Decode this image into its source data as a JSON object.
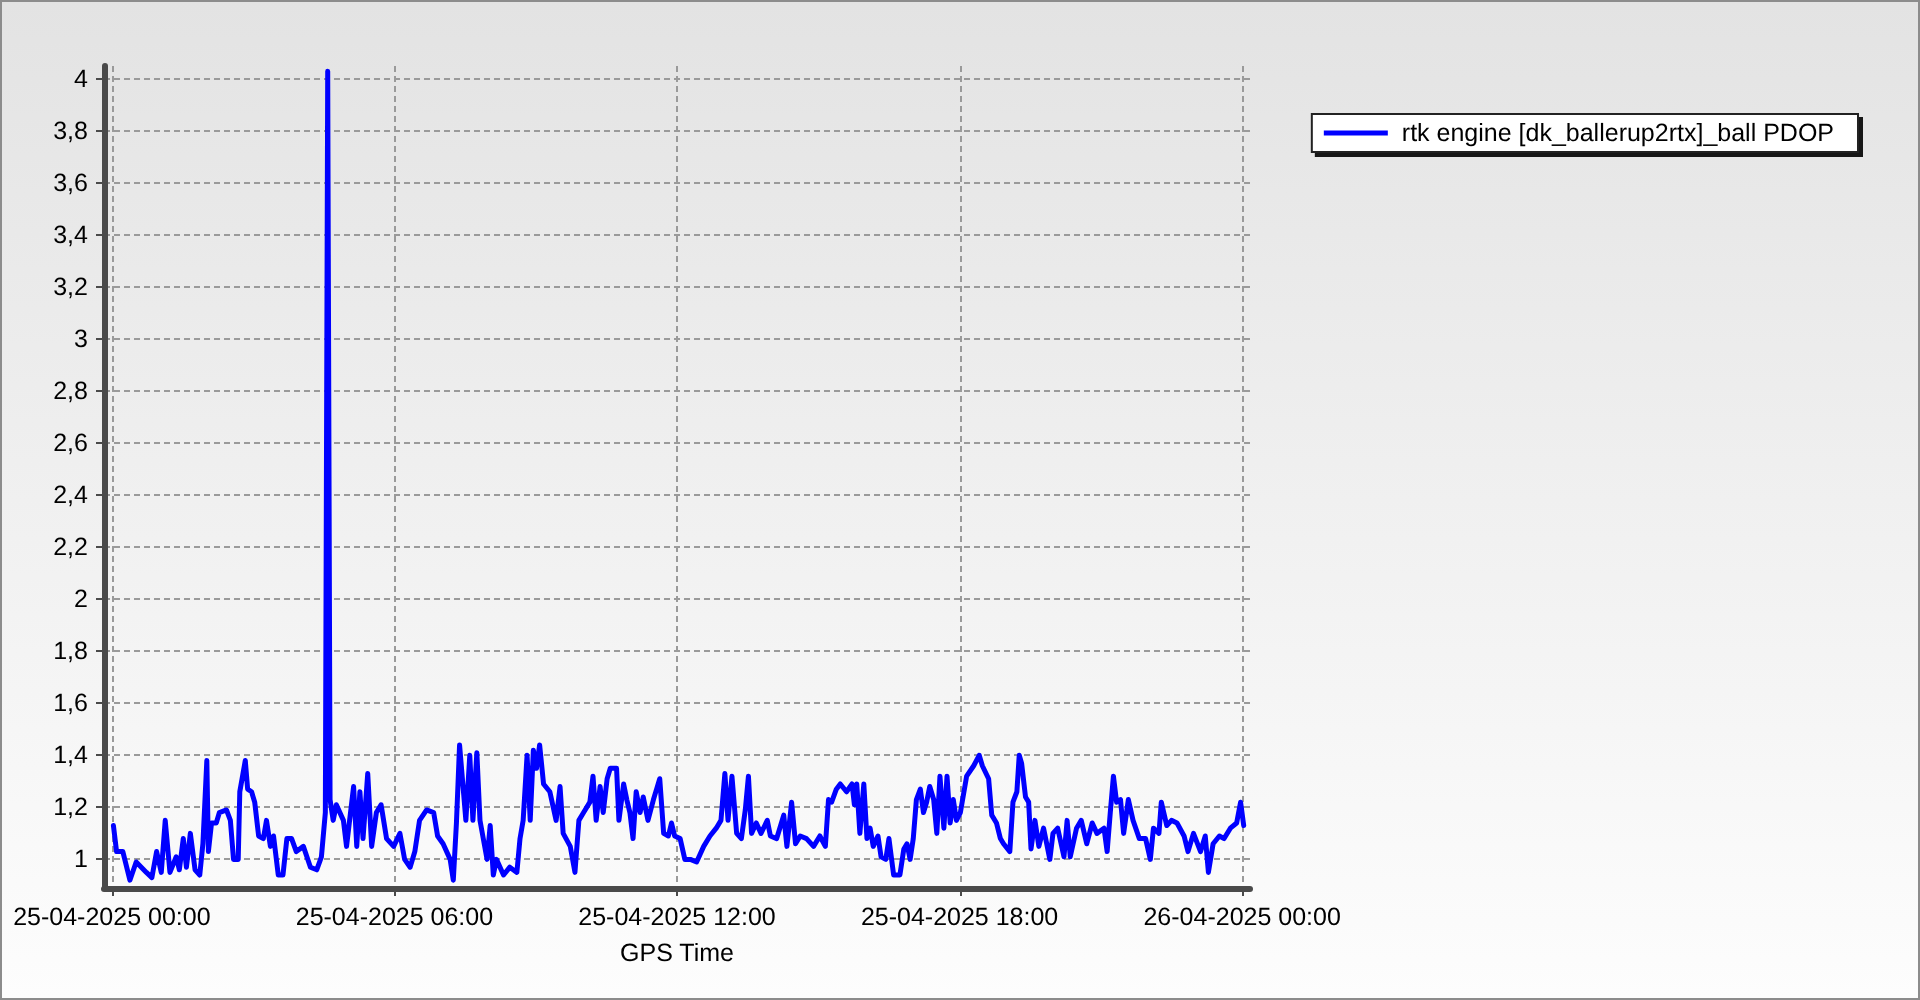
{
  "chart_data": {
    "type": "line",
    "xlabel": "GPS Time",
    "x": [
      "2025-04-25T00:02",
      "2025-04-25T00:06",
      "2025-04-25T00:14",
      "2025-04-25T00:23",
      "2025-04-25T00:31",
      "2025-04-25T00:44",
      "2025-04-25T00:51",
      "2025-04-25T00:57",
      "2025-04-25T01:03",
      "2025-04-25T01:08",
      "2025-04-25T01:14",
      "2025-04-25T01:22",
      "2025-04-25T01:26",
      "2025-04-25T01:31",
      "2025-04-25T01:35",
      "2025-04-25T01:40",
      "2025-04-25T01:46",
      "2025-04-25T01:52",
      "2025-04-25T01:56",
      "2025-04-25T02:01",
      "2025-04-25T02:03",
      "2025-04-25T02:07",
      "2025-04-25T02:13",
      "2025-04-25T02:17",
      "2025-04-25T02:26",
      "2025-04-25T02:31",
      "2025-04-25T02:35",
      "2025-04-25T02:41",
      "2025-04-25T02:43",
      "2025-04-25T02:50",
      "2025-04-25T02:53",
      "2025-04-25T02:58",
      "2025-04-25T03:02",
      "2025-04-25T03:07",
      "2025-04-25T03:13",
      "2025-04-25T03:17",
      "2025-04-25T03:22",
      "2025-04-25T03:26",
      "2025-04-25T03:32",
      "2025-04-25T03:38",
      "2025-04-25T03:43",
      "2025-04-25T03:49",
      "2025-04-25T03:55",
      "2025-04-25T04:04",
      "2025-04-25T04:13",
      "2025-04-25T04:21",
      "2025-04-25T04:27",
      "2025-04-25T04:32",
      "2025-04-25T04:35",
      "2025-04-25T04:38",
      "2025-04-25T04:42",
      "2025-04-25T04:46",
      "2025-04-25T04:55",
      "2025-04-25T04:59",
      "2025-04-25T05:08",
      "2025-04-25T05:12",
      "2025-04-25T05:16",
      "2025-04-25T05:20",
      "2025-04-25T05:26",
      "2025-04-25T05:31",
      "2025-04-25T05:37",
      "2025-04-25T05:43",
      "2025-04-25T05:50",
      "2025-04-25T05:59",
      "2025-04-25T06:07",
      "2025-04-25T06:13",
      "2025-04-25T06:20",
      "2025-04-25T06:26",
      "2025-04-25T06:32",
      "2025-04-25T06:41",
      "2025-04-25T06:50",
      "2025-04-25T06:55",
      "2025-04-25T07:02",
      "2025-04-25T07:11",
      "2025-04-25T07:15",
      "2025-04-25T07:19",
      "2025-04-25T07:23",
      "2025-04-25T07:31",
      "2025-04-25T07:36",
      "2025-04-25T07:40",
      "2025-04-25T07:45",
      "2025-04-25T07:49",
      "2025-04-25T07:58",
      "2025-04-25T08:02",
      "2025-04-25T08:06",
      "2025-04-25T08:10",
      "2025-04-25T08:19",
      "2025-04-25T08:27",
      "2025-04-25T08:36",
      "2025-04-25T08:40",
      "2025-04-25T08:44",
      "2025-04-25T08:49",
      "2025-04-25T08:53",
      "2025-04-25T08:57",
      "2025-04-25T09:01",
      "2025-04-25T09:05",
      "2025-04-25T09:10",
      "2025-04-25T09:18",
      "2025-04-25T09:26",
      "2025-04-25T09:31",
      "2025-04-25T09:35",
      "2025-04-25T09:44",
      "2025-04-25T09:50",
      "2025-04-25T09:55",
      "2025-04-25T10:01",
      "2025-04-25T10:09",
      "2025-04-25T10:13",
      "2025-04-25T10:17",
      "2025-04-25T10:22",
      "2025-04-25T10:26",
      "2025-04-25T10:31",
      "2025-04-25T10:35",
      "2025-04-25T10:43",
      "2025-04-25T10:46",
      "2025-04-25T10:52",
      "2025-04-25T10:56",
      "2025-04-25T11:00",
      "2025-04-25T11:04",
      "2025-04-25T11:08",
      "2025-04-25T11:13",
      "2025-04-25T11:17",
      "2025-04-25T11:23",
      "2025-04-25T11:30",
      "2025-04-25T11:34",
      "2025-04-25T11:38",
      "2025-04-25T11:43",
      "2025-04-25T11:49",
      "2025-04-25T11:53",
      "2025-04-25T11:57",
      "2025-04-25T12:04",
      "2025-04-25T12:10",
      "2025-04-25T12:17",
      "2025-04-25T12:25",
      "2025-04-25T12:34",
      "2025-04-25T12:42",
      "2025-04-25T12:50",
      "2025-04-25T12:56",
      "2025-04-25T13:01",
      "2025-04-25T13:05",
      "2025-04-25T13:10",
      "2025-04-25T13:16",
      "2025-04-25T13:22",
      "2025-04-25T13:27",
      "2025-04-25T13:31",
      "2025-04-25T13:35",
      "2025-04-25T13:41",
      "2025-04-25T13:47",
      "2025-04-25T13:55",
      "2025-04-25T13:59",
      "2025-04-25T14:07",
      "2025-04-25T14:16",
      "2025-04-25T14:20",
      "2025-04-25T14:26",
      "2025-04-25T14:31",
      "2025-04-25T14:37",
      "2025-04-25T14:45",
      "2025-04-25T14:54",
      "2025-04-25T15:02",
      "2025-04-25T15:09",
      "2025-04-25T15:13",
      "2025-04-25T15:17",
      "2025-04-25T15:23",
      "2025-04-25T15:28",
      "2025-04-25T15:36",
      "2025-04-25T15:43",
      "2025-04-25T15:46",
      "2025-04-25T15:49",
      "2025-04-25T15:53",
      "2025-04-25T15:58",
      "2025-04-25T16:02",
      "2025-04-25T16:06",
      "2025-04-25T16:10",
      "2025-04-25T16:16",
      "2025-04-25T16:20",
      "2025-04-25T16:26",
      "2025-04-25T16:30",
      "2025-04-25T16:36",
      "2025-04-25T16:44",
      "2025-04-25T16:49",
      "2025-04-25T16:53",
      "2025-04-25T16:57",
      "2025-04-25T17:01",
      "2025-04-25T17:05",
      "2025-04-25T17:10",
      "2025-04-25T17:14",
      "2025-04-25T17:18",
      "2025-04-25T17:22",
      "2025-04-25T17:27",
      "2025-04-25T17:31",
      "2025-04-25T17:35",
      "2025-04-25T17:40",
      "2025-04-25T17:44",
      "2025-04-25T17:48",
      "2025-04-25T17:52",
      "2025-04-25T17:56",
      "2025-04-25T18:01",
      "2025-04-25T18:09",
      "2025-04-25T18:18",
      "2025-04-25T18:25",
      "2025-04-25T18:29",
      "2025-04-25T18:37",
      "2025-04-25T18:41",
      "2025-04-25T18:47",
      "2025-04-25T18:52",
      "2025-04-25T18:56",
      "2025-04-25T19:04",
      "2025-04-25T19:08",
      "2025-04-25T19:13",
      "2025-04-25T19:16",
      "2025-04-25T19:19",
      "2025-04-25T19:24",
      "2025-04-25T19:28",
      "2025-04-25T19:31",
      "2025-04-25T19:36",
      "2025-04-25T19:41",
      "2025-04-25T19:47",
      "2025-04-25T19:51",
      "2025-04-25T19:55",
      "2025-04-25T19:59",
      "2025-04-25T20:05",
      "2025-04-25T20:13",
      "2025-04-25T20:17",
      "2025-04-25T20:21",
      "2025-04-25T20:29",
      "2025-04-25T20:35",
      "2025-04-25T20:42",
      "2025-04-25T20:49",
      "2025-04-25T20:55",
      "2025-04-25T21:04",
      "2025-04-25T21:08",
      "2025-04-25T21:12",
      "2025-04-25T21:16",
      "2025-04-25T21:20",
      "2025-04-25T21:25",
      "2025-04-25T21:29",
      "2025-04-25T21:35",
      "2025-04-25T21:41",
      "2025-04-25T21:49",
      "2025-04-25T21:57",
      "2025-04-25T22:03",
      "2025-04-25T22:07",
      "2025-04-25T22:14",
      "2025-04-25T22:17",
      "2025-04-25T22:24",
      "2025-04-25T22:30",
      "2025-04-25T22:37",
      "2025-04-25T22:46",
      "2025-04-25T22:51",
      "2025-04-25T22:58",
      "2025-04-25T23:07",
      "2025-04-25T23:13",
      "2025-04-25T23:17",
      "2025-04-25T23:23",
      "2025-04-25T23:31",
      "2025-04-25T23:37",
      "2025-04-25T23:45",
      "2025-04-25T23:53",
      "2025-04-25T23:58",
      "2025-04-26T00:02"
    ],
    "series": [
      {
        "name": "rtk engine [dk_ballerup2rtx]_ball PDOP",
        "color": "#0000ff",
        "values": [
          1.13,
          1.03,
          1.03,
          0.92,
          0.99,
          0.95,
          0.93,
          1.03,
          0.95,
          1.15,
          0.95,
          1.01,
          0.96,
          1.08,
          0.97,
          1.1,
          0.96,
          0.94,
          1.06,
          1.38,
          1.03,
          1.14,
          1.14,
          1.18,
          1.19,
          1.15,
          1.0,
          1.0,
          1.26,
          1.38,
          1.27,
          1.26,
          1.22,
          1.09,
          1.08,
          1.15,
          1.05,
          1.09,
          0.94,
          0.94,
          1.08,
          1.08,
          1.03,
          1.05,
          0.97,
          0.96,
          1.01,
          1.18,
          4.03,
          1.23,
          1.15,
          1.21,
          1.15,
          1.05,
          1.28,
          1.05,
          1.26,
          1.08,
          1.33,
          1.05,
          1.18,
          1.21,
          1.08,
          1.05,
          1.1,
          1.0,
          0.97,
          1.03,
          1.15,
          1.19,
          1.18,
          1.09,
          1.06,
          1.0,
          0.92,
          1.14,
          1.44,
          1.15,
          1.4,
          1.15,
          1.41,
          1.15,
          1.0,
          1.13,
          0.94,
          1.0,
          0.94,
          0.97,
          0.95,
          1.08,
          1.15,
          1.4,
          1.15,
          1.42,
          1.35,
          1.44,
          1.29,
          1.26,
          1.15,
          1.28,
          1.1,
          1.05,
          0.95,
          1.15,
          1.18,
          1.22,
          1.32,
          1.15,
          1.28,
          1.18,
          1.31,
          1.35,
          1.35,
          1.15,
          1.29,
          1.23,
          1.18,
          1.08,
          1.26,
          1.18,
          1.24,
          1.15,
          1.23,
          1.27,
          1.31,
          1.1,
          1.09,
          1.14,
          1.09,
          1.08,
          1.0,
          1.0,
          0.99,
          1.05,
          1.09,
          1.12,
          1.15,
          1.33,
          1.15,
          1.32,
          1.1,
          1.08,
          1.19,
          1.32,
          1.1,
          1.14,
          1.1,
          1.15,
          1.09,
          1.08,
          1.17,
          1.05,
          1.22,
          1.06,
          1.09,
          1.08,
          1.05,
          1.09,
          1.05,
          1.23,
          1.22,
          1.27,
          1.29,
          1.26,
          1.29,
          1.21,
          1.29,
          1.1,
          1.29,
          1.08,
          1.12,
          1.05,
          1.09,
          1.01,
          1.0,
          1.08,
          0.94,
          0.94,
          1.04,
          1.06,
          1.0,
          1.08,
          1.23,
          1.27,
          1.18,
          1.22,
          1.28,
          1.23,
          1.1,
          1.32,
          1.12,
          1.32,
          1.14,
          1.23,
          1.15,
          1.18,
          1.32,
          1.36,
          1.4,
          1.36,
          1.31,
          1.17,
          1.14,
          1.08,
          1.06,
          1.03,
          1.22,
          1.26,
          1.4,
          1.37,
          1.24,
          1.22,
          1.04,
          1.15,
          1.05,
          1.12,
          1.06,
          1.0,
          1.1,
          1.12,
          1.01,
          1.15,
          1.01,
          1.12,
          1.15,
          1.06,
          1.14,
          1.1,
          1.12,
          1.03,
          1.18,
          1.32,
          1.22,
          1.23,
          1.1,
          1.23,
          1.15,
          1.08,
          1.08,
          1.0,
          1.12,
          1.1,
          1.22,
          1.13,
          1.15,
          1.14,
          1.09,
          1.03,
          1.1,
          1.03,
          1.09,
          0.95,
          1.06,
          1.09,
          1.08,
          1.12,
          1.14,
          1.22,
          1.13
        ]
      }
    ],
    "xlim": [
      "2025-04-24T23:50",
      "2025-04-26T00:10"
    ],
    "ylim": [
      0.89,
      4.05
    ],
    "xticks": [
      {
        "value": "2025-04-25T00:00",
        "label": "25-04-2025 00:00"
      },
      {
        "value": "2025-04-25T06:00",
        "label": "25-04-2025 06:00"
      },
      {
        "value": "2025-04-25T12:00",
        "label": "25-04-2025 12:00"
      },
      {
        "value": "2025-04-25T18:00",
        "label": "25-04-2025 18:00"
      },
      {
        "value": "2025-04-26T00:00",
        "label": "26-04-2025 00:00"
      }
    ],
    "yticks": [
      1,
      {
        "value": 1.2,
        "label": "1,2"
      },
      {
        "value": 1.4,
        "label": "1,4"
      },
      {
        "value": 1.6,
        "label": "1,6"
      },
      {
        "value": 1.8,
        "label": "1,8"
      },
      2,
      {
        "value": 2.2,
        "label": "2,2"
      },
      {
        "value": 2.4,
        "label": "2,4"
      },
      {
        "value": 2.6,
        "label": "2,6"
      },
      {
        "value": 2.8,
        "label": "2,8"
      },
      3,
      {
        "value": 3.2,
        "label": "3,2"
      },
      {
        "value": 3.4,
        "label": "3,4"
      },
      {
        "value": 3.6,
        "label": "3,6"
      },
      {
        "value": 3.8,
        "label": "3,8"
      },
      4
    ],
    "grid": true,
    "legend": "top right",
    "marker": "none",
    "line_style": "solid"
  }
}
